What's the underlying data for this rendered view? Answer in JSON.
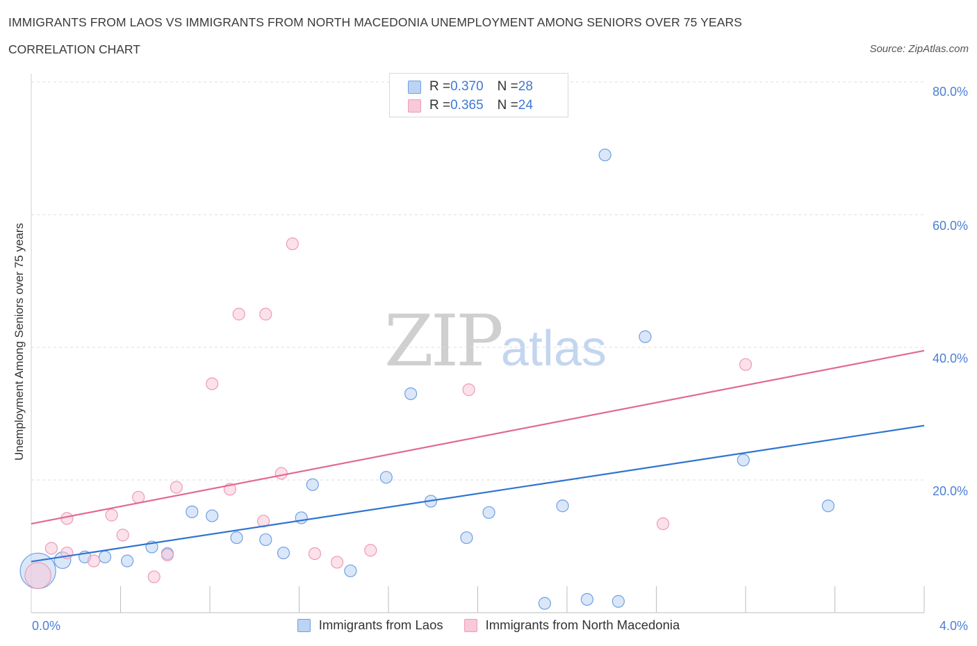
{
  "chart_data": {
    "type": "scatter",
    "title": "IMMIGRANTS FROM LAOS VS IMMIGRANTS FROM NORTH MACEDONIA UNEMPLOYMENT AMONG SENIORS OVER 75 YEARS",
    "subtitle": "CORRELATION CHART",
    "source": "Source: ZipAtlas.com",
    "ylabel": "Unemployment Among Seniors over 75 years",
    "xlim": [
      0,
      4
    ],
    "ylim": [
      0,
      80
    ],
    "x_tick_labels": [
      "0.0%",
      "4.0%"
    ],
    "y_tick_labels": [
      "20.0%",
      "40.0%",
      "60.0%",
      "80.0%"
    ],
    "y_ticks": [
      20,
      40,
      60,
      80
    ],
    "grid": true,
    "legend_top": [
      {
        "r_label": "R = ",
        "r_value": "0.370",
        "n_label": "N = ",
        "n_value": "28"
      },
      {
        "r_label": "R = ",
        "r_value": "0.365",
        "n_label": "N = ",
        "n_value": "24"
      }
    ],
    "watermark": {
      "part1": "ZIP",
      "part2": "atlas"
    },
    "series": [
      {
        "name": "Immigrants from Laos",
        "color": "#6f9fe3",
        "fill": "#bcd3f4",
        "line_color": "#2f74d0",
        "trend": {
          "start": [
            0,
            7.7
          ],
          "end": [
            4,
            28.2
          ]
        },
        "points": [
          [
            0.03,
            6.3,
            3
          ],
          [
            0.14,
            7.9,
            1.4
          ],
          [
            0.24,
            8.4,
            1
          ],
          [
            0.33,
            8.4,
            1
          ],
          [
            0.43,
            7.8,
            1
          ],
          [
            0.54,
            9.9,
            1
          ],
          [
            0.61,
            8.9,
            1
          ],
          [
            0.72,
            15.2,
            1
          ],
          [
            0.81,
            14.6,
            1
          ],
          [
            0.92,
            11.3,
            1
          ],
          [
            1.05,
            11.0,
            1
          ],
          [
            1.13,
            9.0,
            1
          ],
          [
            1.21,
            14.3,
            1
          ],
          [
            1.26,
            19.3,
            1
          ],
          [
            1.43,
            6.3,
            1
          ],
          [
            1.59,
            20.4,
            1
          ],
          [
            1.7,
            33.0,
            1
          ],
          [
            1.79,
            16.8,
            1
          ],
          [
            1.95,
            11.3,
            1
          ],
          [
            2.05,
            15.1,
            1
          ],
          [
            2.3,
            1.4,
            1
          ],
          [
            2.38,
            16.1,
            1
          ],
          [
            2.49,
            2.0,
            1
          ],
          [
            2.57,
            69.0,
            1
          ],
          [
            2.63,
            1.7,
            1
          ],
          [
            2.75,
            41.6,
            1
          ],
          [
            3.19,
            23.0,
            1
          ],
          [
            3.57,
            16.1,
            1
          ]
        ]
      },
      {
        "name": "Immigrants from North Macedonia",
        "color": "#ee9ab5",
        "fill": "#f8c9d8",
        "line_color": "#e06a92",
        "trend": {
          "start": [
            0,
            13.4
          ],
          "end": [
            4,
            39.5
          ]
        },
        "points": [
          [
            0.03,
            5.6,
            2.2
          ],
          [
            0.09,
            9.7,
            1
          ],
          [
            0.16,
            14.2,
            1
          ],
          [
            0.16,
            9.0,
            1
          ],
          [
            0.28,
            7.8,
            1
          ],
          [
            0.36,
            14.7,
            1
          ],
          [
            0.41,
            11.7,
            1
          ],
          [
            0.48,
            17.4,
            1
          ],
          [
            0.55,
            5.4,
            1
          ],
          [
            0.61,
            8.7,
            1
          ],
          [
            0.65,
            18.9,
            1
          ],
          [
            0.81,
            34.5,
            1
          ],
          [
            0.89,
            18.6,
            1
          ],
          [
            0.93,
            45.0,
            1
          ],
          [
            1.04,
            13.8,
            1
          ],
          [
            1.05,
            45.0,
            1
          ],
          [
            1.12,
            21.0,
            1
          ],
          [
            1.17,
            55.6,
            1
          ],
          [
            1.27,
            8.9,
            1
          ],
          [
            1.37,
            7.6,
            1
          ],
          [
            1.52,
            9.4,
            1
          ],
          [
            1.96,
            33.6,
            1
          ],
          [
            2.83,
            13.4,
            1
          ],
          [
            3.2,
            37.4,
            1
          ]
        ]
      }
    ]
  }
}
